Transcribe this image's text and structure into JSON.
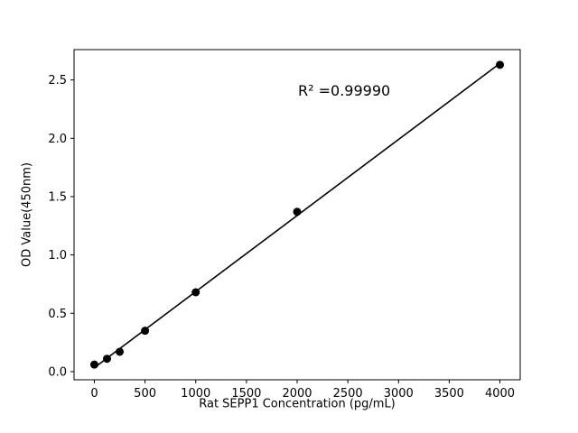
{
  "figure": {
    "background": "#ffffff",
    "foreground": "#000000"
  },
  "chart_data": {
    "type": "scatter",
    "title": "",
    "xlabel": "Rat SEPP1 Concentration (pg/mL)",
    "ylabel": "OD Value(450nm)",
    "points": [
      {
        "x": 0,
        "y": 0.06
      },
      {
        "x": 125,
        "y": 0.11
      },
      {
        "x": 250,
        "y": 0.17
      },
      {
        "x": 500,
        "y": 0.35
      },
      {
        "x": 1000,
        "y": 0.68
      },
      {
        "x": 2000,
        "y": 1.37
      },
      {
        "x": 4000,
        "y": 2.63
      }
    ],
    "fit_line": true,
    "annotation": {
      "text": "R² =0.99990"
    },
    "x_ticks": {
      "values": [
        0,
        500,
        1000,
        1500,
        2000,
        2500,
        3000,
        3500,
        4000
      ],
      "labels": [
        "0",
        "500",
        "1000",
        "1500",
        "2000",
        "2500",
        "3000",
        "3500",
        "4000"
      ]
    },
    "y_ticks": {
      "values": [
        0,
        0.5,
        1.0,
        1.5,
        2.0,
        2.5
      ],
      "labels": [
        "0.0",
        "0.5",
        "1.0",
        "1.5",
        "2.0",
        "2.5"
      ]
    },
    "xlim": [
      -200,
      4200
    ],
    "ylim": [
      -0.07,
      2.76
    ],
    "grid": false,
    "legend": "none",
    "marker_color": "#000000",
    "line_color": "#000000"
  }
}
